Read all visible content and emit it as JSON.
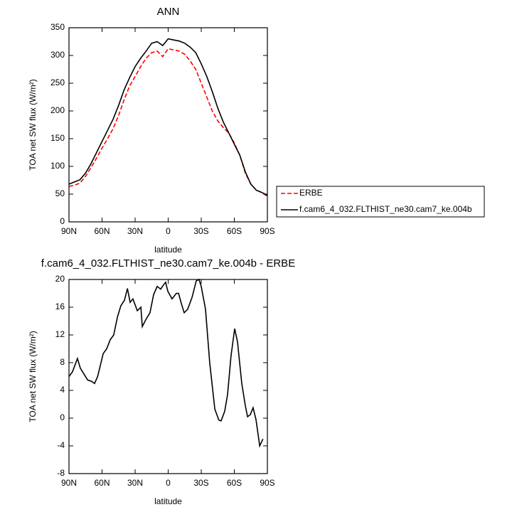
{
  "chart_data": [
    {
      "type": "line",
      "title": "ANN",
      "xlabel": "latitude",
      "ylabel": "TOA net SW flux (W/m²)",
      "x": [
        90,
        85,
        80,
        75,
        70,
        65,
        60,
        55,
        50,
        45,
        40,
        35,
        30,
        25,
        20,
        15,
        10,
        5,
        0,
        -5,
        -10,
        -15,
        -20,
        -25,
        -30,
        -35,
        -40,
        -45,
        -50,
        -55,
        -60,
        -65,
        -70,
        -75,
        -80,
        -85,
        -90
      ],
      "series": [
        {
          "name": "ERBE",
          "color": "#ff0000",
          "dash": true,
          "values": [
            64,
            66,
            70,
            82,
            98,
            115,
            133,
            150,
            168,
            192,
            220,
            245,
            262,
            280,
            295,
            305,
            308,
            298,
            312,
            310,
            308,
            302,
            290,
            275,
            250,
            225,
            200,
            182,
            170,
            160,
            142,
            120,
            88,
            68,
            57,
            53,
            46
          ]
        },
        {
          "name": "f.cam6_4_032.FLTHIST_ne30.cam7_ke.004b",
          "color": "#000000",
          "dash": false,
          "values": [
            68,
            72,
            76,
            88,
            105,
            125,
            145,
            165,
            185,
            210,
            238,
            260,
            280,
            295,
            308,
            322,
            325,
            318,
            330,
            328,
            326,
            322,
            315,
            305,
            285,
            262,
            235,
            205,
            180,
            160,
            140,
            120,
            90,
            68,
            57,
            53,
            48
          ]
        }
      ],
      "xlim": [
        90,
        -90
      ],
      "xticks": [
        {
          "value": 90,
          "label": "90N"
        },
        {
          "value": 60,
          "label": "60N"
        },
        {
          "value": 30,
          "label": "30N"
        },
        0,
        {
          "value": -30,
          "label": "30S"
        },
        {
          "value": -60,
          "label": "60S"
        },
        {
          "value": -90,
          "label": "90S"
        }
      ],
      "ylim": [
        0,
        350
      ],
      "yticks": [
        0,
        50,
        100,
        150,
        200,
        250,
        300,
        350
      ],
      "legend": "outside right"
    },
    {
      "type": "line",
      "title": "f.cam6_4_032.FLTHIST_ne30.cam7_ke.004b - ERBE",
      "xlabel": "latitude",
      "ylabel": "TOA net SW flux (W/m²)",
      "x": [
        90,
        86.8,
        82.3,
        79.7,
        73,
        69.4,
        66.8,
        64,
        59,
        55.8,
        52.6,
        49.4,
        46,
        43,
        39.7,
        37,
        34.5,
        32,
        28,
        24.8,
        23.5,
        20.3,
        16.5,
        13.2,
        10,
        6.8,
        4.8,
        2.3,
        0.3,
        -3.5,
        -7.4,
        -9.4,
        -12,
        -14.5,
        -17.7,
        -21.6,
        -25.5,
        -28,
        -30,
        -33.9,
        -37.7,
        -42.3,
        -46,
        -48,
        -51.3,
        -53.9,
        -57,
        -60.3,
        -62.9,
        -66.8,
        -70,
        -72,
        -74.5,
        -77,
        -79.7,
        -83,
        -86
      ],
      "series": [
        {
          "color": "#000000",
          "dash": false,
          "values": [
            6,
            6.7,
            8.6,
            7.2,
            5.5,
            5.3,
            5,
            6,
            9.3,
            10,
            11.3,
            12,
            14.6,
            16.2,
            17,
            18.7,
            16.7,
            17.2,
            15.5,
            16,
            13.2,
            14.2,
            15.2,
            17.8,
            19,
            18.6,
            19.1,
            19.6,
            18.3,
            17.2,
            18,
            18,
            16.5,
            15.2,
            15.7,
            17.4,
            19.8,
            20,
            19,
            15.7,
            8,
            1.3,
            -0.3,
            -0.4,
            1,
            3.4,
            9,
            12.9,
            11,
            5,
            1.8,
            0.2,
            0.5,
            1.5,
            -0.2,
            -4,
            -3
          ]
        }
      ],
      "xlim": [
        90,
        -90
      ],
      "xticks": [
        {
          "value": 90,
          "label": "90N"
        },
        {
          "value": 60,
          "label": "60N"
        },
        {
          "value": 30,
          "label": "30N"
        },
        0,
        {
          "value": -30,
          "label": "30S"
        },
        {
          "value": -60,
          "label": "60S"
        },
        {
          "value": -90,
          "label": "90S"
        }
      ],
      "ylim": [
        -8,
        20
      ],
      "yticks": [
        -8,
        -4,
        0,
        4,
        8,
        12,
        16,
        20
      ]
    }
  ]
}
